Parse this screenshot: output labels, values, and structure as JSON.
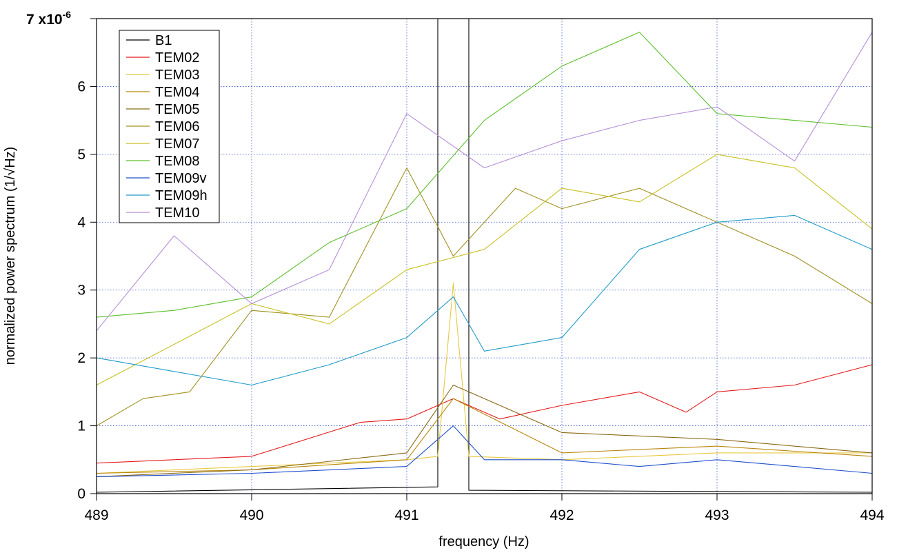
{
  "chart_data": {
    "type": "line",
    "title": "",
    "xlabel": "frequency (Hz)",
    "ylabel": "normalized power spectrum (1/√Hz)",
    "xlim": [
      489,
      494
    ],
    "ylim": [
      0,
      7
    ],
    "x_ticks": [
      489,
      490,
      491,
      492,
      493,
      494
    ],
    "x_tick_labels": [
      "489",
      "490",
      "491",
      "492",
      "493",
      "494"
    ],
    "y_ticks": [
      0,
      1,
      2,
      3,
      4,
      5,
      6,
      7
    ],
    "y_tick_labels": [
      "0",
      "1",
      "2",
      "3",
      "4",
      "5",
      "6",
      "7"
    ],
    "y_exponent_label": "x10",
    "y_exponent_power": "-6",
    "grid": true,
    "legend_position": "top-left",
    "series": [
      {
        "name": "B1",
        "color": "#000000",
        "x": [
          489.0,
          491.2,
          491.2,
          491.4,
          491.4,
          494.0
        ],
        "values": [
          0.02,
          0.1,
          7.0,
          7.0,
          0.05,
          0.02
        ]
      },
      {
        "name": "TEM02",
        "color": "#e41a1c",
        "x": [
          489.0,
          490.0,
          490.7,
          491.0,
          491.3,
          491.6,
          492.0,
          492.5,
          492.8,
          493.0,
          493.5,
          494.0
        ],
        "values": [
          0.45,
          0.55,
          1.05,
          1.1,
          1.4,
          1.1,
          1.3,
          1.5,
          1.2,
          1.5,
          1.6,
          1.9
        ]
      },
      {
        "name": "TEM03",
        "color": "#e8c840",
        "x": [
          489.0,
          490.0,
          491.0,
          491.2,
          491.3,
          491.4,
          492.0,
          493.0,
          494.0
        ],
        "values": [
          0.3,
          0.4,
          0.5,
          0.55,
          3.1,
          0.55,
          0.5,
          0.6,
          0.6
        ]
      },
      {
        "name": "TEM04",
        "color": "#b8860b",
        "x": [
          489.0,
          490.0,
          491.0,
          491.3,
          492.0,
          493.0,
          494.0
        ],
        "values": [
          0.3,
          0.35,
          0.5,
          1.4,
          0.6,
          0.7,
          0.55
        ]
      },
      {
        "name": "TEM05",
        "color": "#8b6914",
        "x": [
          489.0,
          490.0,
          491.0,
          491.3,
          492.0,
          493.0,
          494.0
        ],
        "values": [
          0.25,
          0.35,
          0.6,
          1.6,
          0.9,
          0.8,
          0.6
        ]
      },
      {
        "name": "TEM06",
        "color": "#a09020",
        "x": [
          489.0,
          489.3,
          489.6,
          490.0,
          490.5,
          491.0,
          491.3,
          491.7,
          492.0,
          492.5,
          493.0,
          493.5,
          494.0
        ],
        "values": [
          1.0,
          1.4,
          1.5,
          2.7,
          2.6,
          4.8,
          3.5,
          4.5,
          4.2,
          4.5,
          4.0,
          3.5,
          2.8
        ]
      },
      {
        "name": "TEM07",
        "color": "#c8c020",
        "x": [
          489.0,
          489.5,
          490.0,
          490.5,
          491.0,
          491.5,
          492.0,
          492.5,
          493.0,
          493.5,
          494.0
        ],
        "values": [
          1.6,
          2.2,
          2.8,
          2.5,
          3.3,
          3.6,
          4.5,
          4.3,
          5.0,
          4.8,
          3.9
        ]
      },
      {
        "name": "TEM08",
        "color": "#5cbf2a",
        "x": [
          489.0,
          489.5,
          490.0,
          490.5,
          491.0,
          491.5,
          492.0,
          492.5,
          493.0,
          493.5,
          494.0
        ],
        "values": [
          2.6,
          2.7,
          2.9,
          3.7,
          4.2,
          5.5,
          6.3,
          6.8,
          5.6,
          5.5,
          5.4
        ]
      },
      {
        "name": "TEM09v",
        "color": "#1f4fcc",
        "x": [
          489.0,
          490.0,
          491.0,
          491.3,
          491.5,
          492.0,
          492.5,
          493.0,
          493.5,
          494.0
        ],
        "values": [
          0.25,
          0.3,
          0.4,
          1.0,
          0.5,
          0.5,
          0.4,
          0.5,
          0.4,
          0.3
        ]
      },
      {
        "name": "TEM09h",
        "color": "#1f9bc8",
        "x": [
          489.0,
          489.5,
          490.0,
          490.5,
          491.0,
          491.3,
          491.5,
          492.0,
          492.5,
          493.0,
          493.5,
          494.0
        ],
        "values": [
          2.0,
          1.8,
          1.6,
          1.9,
          2.3,
          2.9,
          2.1,
          2.3,
          3.6,
          4.0,
          4.1,
          3.6
        ]
      },
      {
        "name": "TEM10",
        "color": "#b58fd8",
        "x": [
          489.0,
          489.5,
          490.0,
          490.5,
          491.0,
          491.5,
          492.0,
          492.5,
          493.0,
          493.5,
          494.0
        ],
        "values": [
          2.4,
          3.8,
          2.8,
          3.3,
          5.6,
          4.8,
          5.2,
          5.5,
          5.7,
          4.9,
          6.8
        ]
      }
    ]
  }
}
